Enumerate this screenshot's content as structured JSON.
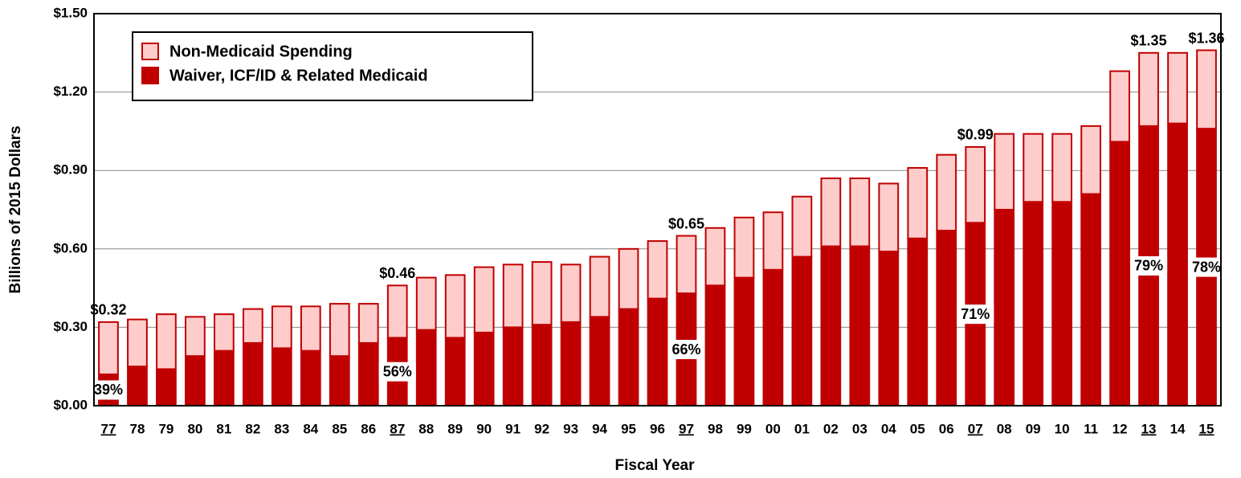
{
  "chart_data": {
    "type": "stacked_bar",
    "x_label": "Fiscal Year",
    "y_label": "Billions of 2015 Dollars",
    "categories": [
      "77",
      "78",
      "79",
      "80",
      "81",
      "82",
      "83",
      "84",
      "85",
      "86",
      "87",
      "88",
      "89",
      "90",
      "91",
      "92",
      "93",
      "94",
      "95",
      "96",
      "97",
      "98",
      "99",
      "00",
      "01",
      "02",
      "03",
      "04",
      "05",
      "06",
      "07",
      "08",
      "09",
      "10",
      "11",
      "12",
      "13",
      "14",
      "15"
    ],
    "series": [
      {
        "name": "Non-Medicaid Spending",
        "color": "#ffcccc",
        "values": [
          0.2,
          0.18,
          0.21,
          0.15,
          0.14,
          0.13,
          0.16,
          0.17,
          0.2,
          0.15,
          0.2,
          0.2,
          0.24,
          0.25,
          0.24,
          0.24,
          0.22,
          0.23,
          0.23,
          0.22,
          0.22,
          0.22,
          0.23,
          0.22,
          0.23,
          0.26,
          0.26,
          0.26,
          0.27,
          0.29,
          0.29,
          0.29,
          0.26,
          0.26,
          0.26,
          0.27,
          0.28,
          0.27,
          0.3
        ]
      },
      {
        "name": "Waiver, ICF/ID & Related Medicaid",
        "color": "#c00000",
        "values": [
          0.12,
          0.15,
          0.14,
          0.19,
          0.21,
          0.24,
          0.22,
          0.21,
          0.19,
          0.24,
          0.26,
          0.29,
          0.26,
          0.28,
          0.3,
          0.31,
          0.32,
          0.34,
          0.37,
          0.41,
          0.43,
          0.46,
          0.49,
          0.52,
          0.57,
          0.61,
          0.61,
          0.59,
          0.64,
          0.67,
          0.7,
          0.75,
          0.78,
          0.78,
          0.81,
          1.01,
          1.07,
          1.08,
          1.06
        ]
      }
    ],
    "edge_color": "#c00000",
    "ylim": [
      0,
      1.5
    ],
    "yticks": [
      {
        "value": 0,
        "label": "$0.00"
      },
      {
        "value": 0.3,
        "label": "$0.30"
      },
      {
        "value": 0.6,
        "label": "$0.60"
      },
      {
        "value": 0.9,
        "label": "$0.90"
      },
      {
        "value": 1.2,
        "label": "$1.20"
      },
      {
        "value": 1.5,
        "label": "$1.50"
      }
    ],
    "grid": true,
    "legend": "upper left",
    "total_labels": [
      {
        "x": "77",
        "text": "$0.32"
      },
      {
        "x": "87",
        "text": "$0.46"
      },
      {
        "x": "97",
        "text": "$0.65"
      },
      {
        "x": "07",
        "text": "$0.99"
      },
      {
        "x": "13",
        "text": "$1.35"
      },
      {
        "x": "15",
        "text": "$1.36"
      }
    ],
    "share_labels": [
      {
        "x": "77",
        "text": "39%"
      },
      {
        "x": "87",
        "text": "56%"
      },
      {
        "x": "97",
        "text": "66%"
      },
      {
        "x": "07",
        "text": "71%"
      },
      {
        "x": "13",
        "text": "79%"
      },
      {
        "x": "15",
        "text": "78%"
      }
    ]
  }
}
